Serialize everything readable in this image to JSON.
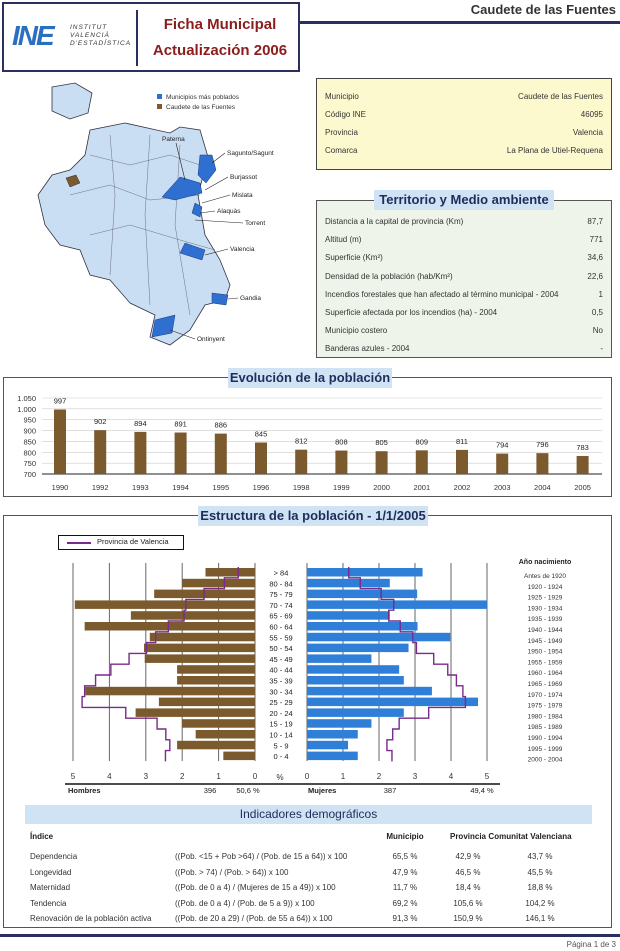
{
  "header": {
    "logo_text": "INE",
    "institute_lines": [
      "INSTITUT",
      "VALENCIÀ",
      "D'ESTADÍSTICA"
    ],
    "title": "Ficha Municipal",
    "subtitle": "Actualización 2006",
    "municipality": "Caudete de las Fuentes"
  },
  "map": {
    "legend": [
      {
        "label": "Municipios más poblados",
        "color": "#2f6fd0"
      },
      {
        "label": "Caudete de las Fuentes",
        "color": "#7a5a2e"
      }
    ],
    "labels": [
      "Paterna",
      "Sagunto/Sagunt",
      "Burjassot",
      "Mislata",
      "Alaquàs",
      "Torrent",
      "Valencia",
      "Gandia",
      "Ontinyent"
    ]
  },
  "info": {
    "rows": [
      {
        "label": "Municipio",
        "value": "Caudete de las Fuentes"
      },
      {
        "label": "Código INE",
        "value": "46095"
      },
      {
        "label": "Provincia",
        "value": "Valencia"
      },
      {
        "label": "Comarca",
        "value": "La Plana de Utiel-Requena"
      }
    ]
  },
  "territorio": {
    "title": "Territorio y Medio ambiente",
    "rows": [
      {
        "label": "Distancia a la capital de provincia (Km)",
        "value": "87,7"
      },
      {
        "label": "Altitud (m)",
        "value": "771"
      },
      {
        "label": "Superficie (Km²)",
        "value": "34,6"
      },
      {
        "label": "Densidad de la población (hab/Km²)",
        "value": "22,6"
      },
      {
        "label": "Incendios forestales que han afectado al término municipal - 2004",
        "value": "1"
      },
      {
        "label": "Superficie afectada por los incendios (ha) - 2004",
        "value": "0,5"
      },
      {
        "label": "Municipio costero",
        "value": "No"
      },
      {
        "label": "Banderas azules - 2004",
        "value": "-"
      }
    ]
  },
  "chart_data": [
    {
      "type": "bar",
      "title": "Evolución de la población",
      "color": "#7b5a2e",
      "ylim": [
        700,
        1050
      ],
      "grid": true,
      "yticks": [
        "700",
        "750",
        "800",
        "850",
        "900",
        "950",
        "1.000",
        "1.050"
      ],
      "categories": [
        "1990",
        "1992",
        "1993",
        "1994",
        "1995",
        "1996",
        "1998",
        "1999",
        "2000",
        "2001",
        "2002",
        "2003",
        "2004",
        "2005"
      ],
      "values": [
        997,
        902,
        894,
        891,
        886,
        845,
        812,
        808,
        805,
        809,
        811,
        794,
        796,
        783
      ]
    },
    {
      "type": "bar",
      "title": "Estructura de la población - 1/1/2005",
      "orientation": "population-pyramid",
      "unit": "%",
      "legend": "Provincia de Valencia",
      "legend_color": "#7a2a8a",
      "men_color": "#7b5a2e",
      "women_color": "#2f7fd8",
      "xticks": [
        "0",
        "1",
        "2",
        "3",
        "4",
        "5"
      ],
      "age_groups": [
        "> 84",
        "80 - 84",
        "75 - 79",
        "70 - 74",
        "65 - 69",
        "60 - 64",
        "55 - 59",
        "50 - 54",
        "45 - 49",
        "40 - 44",
        "35 - 39",
        "30 - 34",
        "25 - 29",
        "20 - 24",
        "15 - 19",
        "10 - 14",
        "5 - 9",
        "0 - 4"
      ],
      "birth_year_title": "Año nacimiento",
      "birth_years": [
        "Antes de 1920",
        "1920 - 1924",
        "1925 - 1929",
        "1930 - 1934",
        "1935 - 1939",
        "1940 - 1944",
        "1945 - 1949",
        "1950 - 1954",
        "1955 - 1959",
        "1960 - 1964",
        "1965 - 1969",
        "1970 - 1974",
        "1975 - 1979",
        "1980 - 1984",
        "1985 - 1989",
        "1990 - 1994",
        "1995 - 1999",
        "2000 - 2004"
      ],
      "series": [
        {
          "name": "Hombres",
          "values": [
            1.36,
            2.0,
            2.77,
            4.95,
            3.41,
            4.68,
            2.89,
            3.05,
            3.03,
            2.14,
            2.14,
            4.66,
            2.64,
            3.28,
            2.0,
            1.63,
            2.14,
            0.87
          ]
        },
        {
          "name": "Mujeres",
          "values": [
            3.21,
            2.3,
            3.06,
            5.0,
            2.3,
            3.07,
            3.98,
            2.82,
            1.79,
            2.56,
            2.69,
            3.47,
            4.75,
            2.69,
            1.79,
            1.41,
            1.14,
            1.41
          ]
        },
        {
          "name": "Provincia de Valencia - Hombres",
          "values": [
            0.46,
            0.84,
            1.4,
            1.9,
            1.95,
            2.38,
            2.73,
            2.98,
            3.46,
            3.96,
            4.38,
            4.68,
            4.75,
            3.55,
            2.69,
            2.45,
            2.34,
            2.46
          ]
        },
        {
          "name": "Provincia de Valencia - Mujeres",
          "values": [
            1.16,
            1.48,
            2.06,
            2.41,
            2.27,
            2.59,
            2.94,
            3.04,
            3.52,
            3.91,
            4.15,
            4.33,
            4.4,
            3.38,
            2.56,
            2.38,
            2.22,
            2.36
          ]
        }
      ],
      "totals": {
        "men_label": "Hombres",
        "men_count": "396",
        "men_pct": "50,6 %",
        "women_label": "Mujeres",
        "women_count": "387",
        "women_pct": "49,4 %"
      }
    }
  ],
  "indicadores": {
    "title": "Indicadores demográficos",
    "headers": [
      "Índice",
      "Municipio",
      "Provincia",
      "Comunitat Valenciana"
    ],
    "rows": [
      {
        "name": "Dependencia",
        "formula": "((Pob. <15 + Pob >64) / (Pob. de 15 a 64)) x 100",
        "muni": "65,5 %",
        "prov": "42,9 %",
        "cv": "43,7 %"
      },
      {
        "name": "Longevidad",
        "formula": "((Pob. > 74) / (Pob. > 64)) x 100",
        "muni": "47,9 %",
        "prov": "46,5 %",
        "cv": "45,5 %"
      },
      {
        "name": "Maternidad",
        "formula": "((Pob. de 0 a 4) / (Mujeres de 15 a 49)) x 100",
        "muni": "11,7 %",
        "prov": "18,4 %",
        "cv": "18,8 %"
      },
      {
        "name": "Tendencia",
        "formula": "((Pob. de 0 a 4) / (Pob. de 5 a 9)) x 100",
        "muni": "69,2 %",
        "prov": "105,6 %",
        "cv": "104,2 %"
      },
      {
        "name": "Renovación de la población activa",
        "formula": "((Pob. de 20 a 29) / (Pob. de 55 a 64)) x 100",
        "muni": "91,3 %",
        "prov": "150,9 %",
        "cv": "146,1 %"
      }
    ]
  },
  "footer": {
    "page": "Página 1 de 3"
  }
}
